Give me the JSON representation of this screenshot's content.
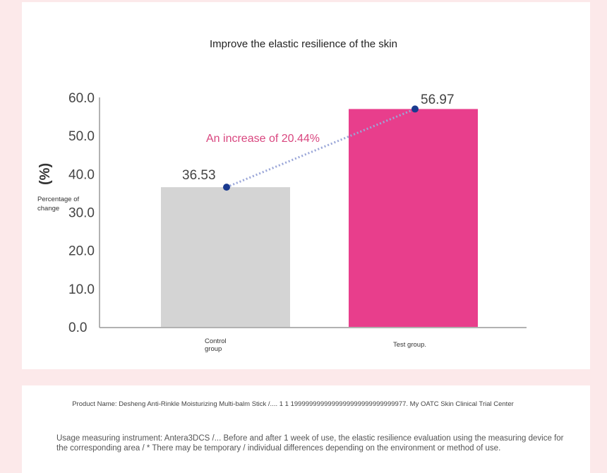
{
  "chart_data": {
    "type": "bar",
    "title": "Improve the elastic resilience of the skin",
    "unit": "(%)",
    "ylabel": "Percentage of change",
    "categories": [
      "Control group",
      "Test group."
    ],
    "values": [
      36.53,
      56.97
    ],
    "value_labels": [
      "36.53",
      "56.97"
    ],
    "bar_colors": [
      "#d4d4d4",
      "#e83e8c"
    ],
    "ylim": [
      0,
      60
    ],
    "yticks": [
      "0.0",
      "10.0",
      "20.0",
      "30.0",
      "40.0",
      "50.0",
      "60.0"
    ],
    "ytick_values": [
      0,
      10,
      20,
      30,
      40,
      50,
      60
    ],
    "annotation": "An increase of 20.44%",
    "annotation_color": "#d9467f",
    "connector_color": "#1a3a8f",
    "grid": false
  },
  "info": {
    "product_line": "Product Name: Desheng Anti-Rinkle Moisturizing Multi-balm Stick /.... 1 1 1999999999999999999999999999977. My OATC Skin Clinical Trial Center",
    "usage_line": "Usage measuring instrument: Antera3DCS /... Before and after 1 week of use, the elastic resilience evaluation using the measuring device for the corresponding area / * There may be temporary / individual differences depending on the environment or method of use."
  }
}
